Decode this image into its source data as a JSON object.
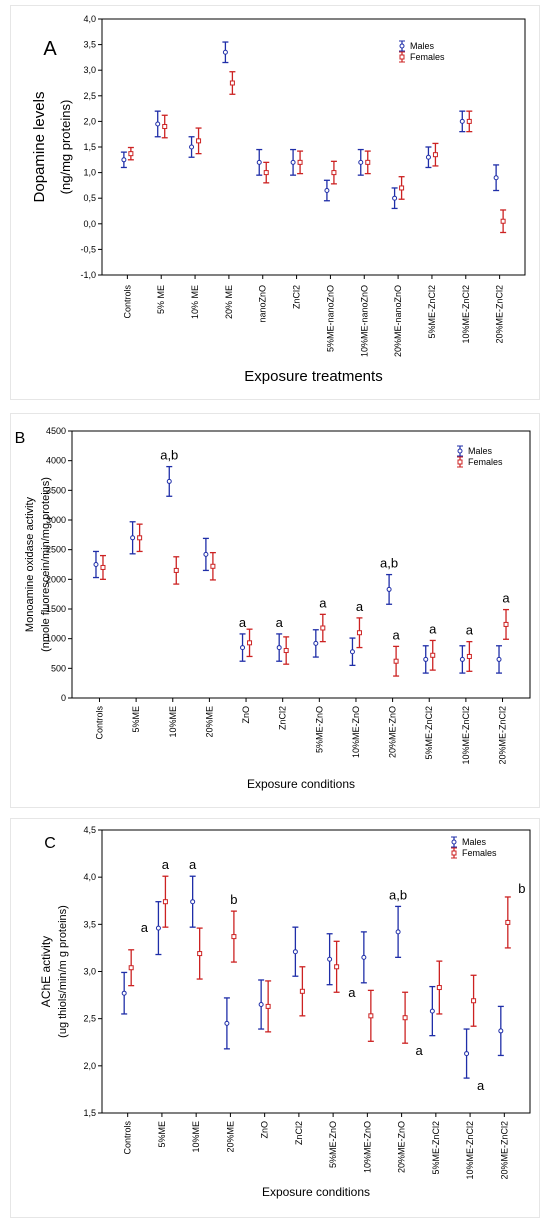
{
  "colors": {
    "males": "#1f2ea8",
    "females": "#cc2222",
    "frame": "#000000",
    "panel_border": "#e6e6e6"
  },
  "chart_data": [
    {
      "type": "scatter",
      "panel_label": "A",
      "ylabel": [
        "Dopamine levels",
        "(ng/mg proteins)"
      ],
      "xlabel": "Exposure treatments",
      "ylim": [
        -1.0,
        4.0
      ],
      "yticks": [
        "-1,0",
        "-0,5",
        "0,0",
        "0,5",
        "1,0",
        "1,5",
        "2,0",
        "2,5",
        "3,0",
        "3,5",
        "4,0"
      ],
      "legend": "top-right",
      "categories": [
        "Controls",
        "5% ME",
        "10% ME",
        "20% ME",
        "nanoZnO",
        "ZnCl2",
        "5%ME-nanoZnO",
        "10%ME-nanoZnO",
        "20%ME-nanoZnO",
        "5%ME-ZnCl2",
        "10%ME-ZnCl2",
        "20%ME-ZnCl2"
      ],
      "series": [
        {
          "name": "Males",
          "marker": "circle",
          "values": [
            1.25,
            1.95,
            1.5,
            3.35,
            1.2,
            1.2,
            0.65,
            1.2,
            0.5,
            1.3,
            2.0,
            0.9
          ],
          "err": [
            0.15,
            0.25,
            0.2,
            0.2,
            0.25,
            0.25,
            0.2,
            0.25,
            0.2,
            0.2,
            0.2,
            0.25
          ]
        },
        {
          "name": "Females",
          "marker": "square",
          "values": [
            1.37,
            1.9,
            1.62,
            2.75,
            1.0,
            1.2,
            1.0,
            1.2,
            0.7,
            1.35,
            2.0,
            0.05
          ],
          "err": [
            0.12,
            0.22,
            0.25,
            0.22,
            0.2,
            0.22,
            0.22,
            0.22,
            0.22,
            0.22,
            0.2,
            0.22
          ]
        }
      ],
      "annotations": []
    },
    {
      "type": "scatter",
      "panel_label": "B",
      "ylabel": [
        "Monoamine oxidase activity",
        "(nmole fluorescein/min/mg proteins)"
      ],
      "xlabel": "Exposure conditions",
      "ylim": [
        0,
        4500
      ],
      "yticks": [
        "0",
        "500",
        "1000",
        "1500",
        "2000",
        "2500",
        "3000",
        "3500",
        "4000",
        "4500"
      ],
      "legend": "top-right",
      "categories": [
        "Controls",
        "5%ME",
        "10%ME",
        "20%ME",
        "ZnO",
        "ZnCl2",
        "5%ME-ZnO",
        "10%ME-ZnO",
        "20%ME-ZnO",
        "5%ME-ZnCl2",
        "10%ME-ZnCl2",
        "20%ME-ZnCl2"
      ],
      "series": [
        {
          "name": "Males",
          "marker": "circle",
          "values": [
            2250,
            2700,
            3650,
            2420,
            850,
            850,
            920,
            780,
            1830,
            650,
            650,
            650
          ],
          "err": [
            220,
            270,
            250,
            270,
            230,
            230,
            230,
            230,
            250,
            230,
            230,
            230
          ]
        },
        {
          "name": "Females",
          "marker": "square",
          "values": [
            2200,
            2700,
            2150,
            2220,
            930,
            800,
            1180,
            1100,
            620,
            720,
            700,
            1240
          ],
          "err": [
            200,
            230,
            230,
            230,
            230,
            230,
            230,
            250,
            250,
            250,
            250,
            250
          ]
        }
      ],
      "annotations": [
        {
          "index": 2,
          "series": "Males",
          "text": "a,b"
        },
        {
          "index": 4,
          "series": "Males",
          "text": "a"
        },
        {
          "index": 5,
          "series": "Males",
          "text": "a"
        },
        {
          "index": 6,
          "series": "Females",
          "text": "a"
        },
        {
          "index": 7,
          "series": "Females",
          "text": "a"
        },
        {
          "index": 8,
          "series": "Males",
          "text": "a,b"
        },
        {
          "index": 8,
          "series": "Females",
          "text": "a"
        },
        {
          "index": 9,
          "series": "Females",
          "text": "a"
        },
        {
          "index": 10,
          "series": "Females",
          "text": "a"
        },
        {
          "index": 11,
          "series": "Females",
          "text": "a"
        }
      ]
    },
    {
      "type": "scatter",
      "panel_label": "C",
      "ylabel": [
        "AChE activity",
        "(ug thiols/min/m g proteins)"
      ],
      "xlabel": "Exposure conditions",
      "ylim": [
        1.5,
        4.5
      ],
      "yticks": [
        "1,5",
        "2,0",
        "2,5",
        "3,0",
        "3,5",
        "4,0",
        "4,5"
      ],
      "legend": "top-right",
      "categories": [
        "Controls",
        "5%ME",
        "10%ME",
        "20%ME",
        "ZnO",
        "ZnCl2",
        "5%ME-ZnO",
        "10%ME-ZnO",
        "20%ME-ZnO",
        "5%ME-ZnCl2",
        "10%ME-ZnCl2",
        "20%ME-ZnCl2"
      ],
      "series": [
        {
          "name": "Males",
          "marker": "circle",
          "values": [
            2.77,
            3.46,
            3.74,
            2.45,
            2.65,
            3.21,
            3.13,
            3.15,
            3.42,
            2.58,
            2.13,
            2.37
          ],
          "err": [
            0.22,
            0.28,
            0.27,
            0.27,
            0.26,
            0.26,
            0.27,
            0.27,
            0.27,
            0.26,
            0.26,
            0.26
          ]
        },
        {
          "name": "Females",
          "marker": "square",
          "values": [
            3.04,
            3.74,
            3.19,
            3.37,
            2.63,
            2.79,
            3.05,
            2.53,
            2.51,
            2.83,
            2.69,
            3.52
          ],
          "err": [
            0.19,
            0.27,
            0.27,
            0.27,
            0.27,
            0.26,
            0.27,
            0.27,
            0.27,
            0.28,
            0.27,
            0.27
          ]
        }
      ],
      "annotations": [
        {
          "index": 1,
          "series": "Males",
          "text": "a",
          "side": "left"
        },
        {
          "index": 1,
          "series": "Females",
          "text": "a",
          "side": "top"
        },
        {
          "index": 2,
          "series": "Males",
          "text": "a",
          "side": "top"
        },
        {
          "index": 3,
          "series": "Females",
          "text": "b",
          "side": "top"
        },
        {
          "index": 7,
          "series": "Males",
          "text": "a",
          "side": "below-left"
        },
        {
          "index": 8,
          "series": "Males",
          "text": "a,b",
          "side": "top"
        },
        {
          "index": 8,
          "series": "Females",
          "text": "a",
          "side": "below-right"
        },
        {
          "index": 10,
          "series": "Males",
          "text": "a",
          "side": "below-right"
        },
        {
          "index": 11,
          "series": "Females",
          "text": "b",
          "side": "top-right"
        }
      ]
    }
  ]
}
